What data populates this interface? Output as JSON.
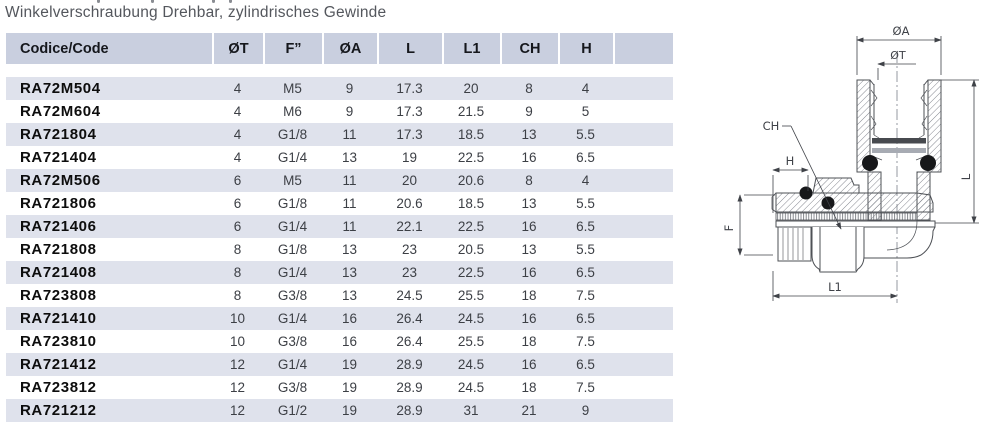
{
  "title": "Winkelverschraubung Drehbar, zylindrisches Gewinde",
  "table": {
    "headers": [
      "Codice/Code",
      "ØT",
      "F”",
      "ØA",
      "L",
      "L1",
      "CH",
      "H",
      ""
    ],
    "rows": [
      [
        "RA72M504",
        "4",
        "M5",
        "9",
        "17.3",
        "20",
        "8",
        "4"
      ],
      [
        "RA72M604",
        "4",
        "M6",
        "9",
        "17.3",
        "21.5",
        "9",
        "5"
      ],
      [
        "RA721804",
        "4",
        "G1/8",
        "11",
        "17.3",
        "18.5",
        "13",
        "5.5"
      ],
      [
        "RA721404",
        "4",
        "G1/4",
        "13",
        "19",
        "22.5",
        "16",
        "6.5"
      ],
      [
        "RA72M506",
        "6",
        "M5",
        "11",
        "20",
        "20.6",
        "8",
        "4"
      ],
      [
        "RA721806",
        "6",
        "G1/8",
        "11",
        "20.6",
        "18.5",
        "13",
        "5.5"
      ],
      [
        "RA721406",
        "6",
        "G1/4",
        "11",
        "22.1",
        "22.5",
        "16",
        "6.5"
      ],
      [
        "RA721808",
        "8",
        "G1/8",
        "13",
        "23",
        "20.5",
        "13",
        "5.5"
      ],
      [
        "RA721408",
        "8",
        "G1/4",
        "13",
        "23",
        "22.5",
        "16",
        "6.5"
      ],
      [
        "RA723808",
        "8",
        "G3/8",
        "13",
        "24.5",
        "25.5",
        "18",
        "7.5"
      ],
      [
        "RA721410",
        "10",
        "G1/4",
        "16",
        "26.4",
        "24.5",
        "16",
        "6.5"
      ],
      [
        "RA723810",
        "10",
        "G3/8",
        "16",
        "26.4",
        "25.5",
        "18",
        "7.5"
      ],
      [
        "RA721412",
        "12",
        "G1/4",
        "19",
        "28.9",
        "24.5",
        "16",
        "6.5"
      ],
      [
        "RA723812",
        "12",
        "G3/8",
        "19",
        "28.9",
        "24.5",
        "18",
        "7.5"
      ],
      [
        "RA721212",
        "12",
        "G1/2",
        "19",
        "28.9",
        "31",
        "21",
        "9"
      ]
    ]
  },
  "diagram": {
    "labels": {
      "oa": "ØA",
      "ot": "ØT",
      "l": "L",
      "ch": "CH",
      "h": "H",
      "f": "F",
      "l1": "L1"
    }
  },
  "colors": {
    "header_bg": "#c9cfdf",
    "row_alt_bg": "#dfe2ec",
    "title_text": "#54575d",
    "drawing_line": "#4e5156"
  }
}
